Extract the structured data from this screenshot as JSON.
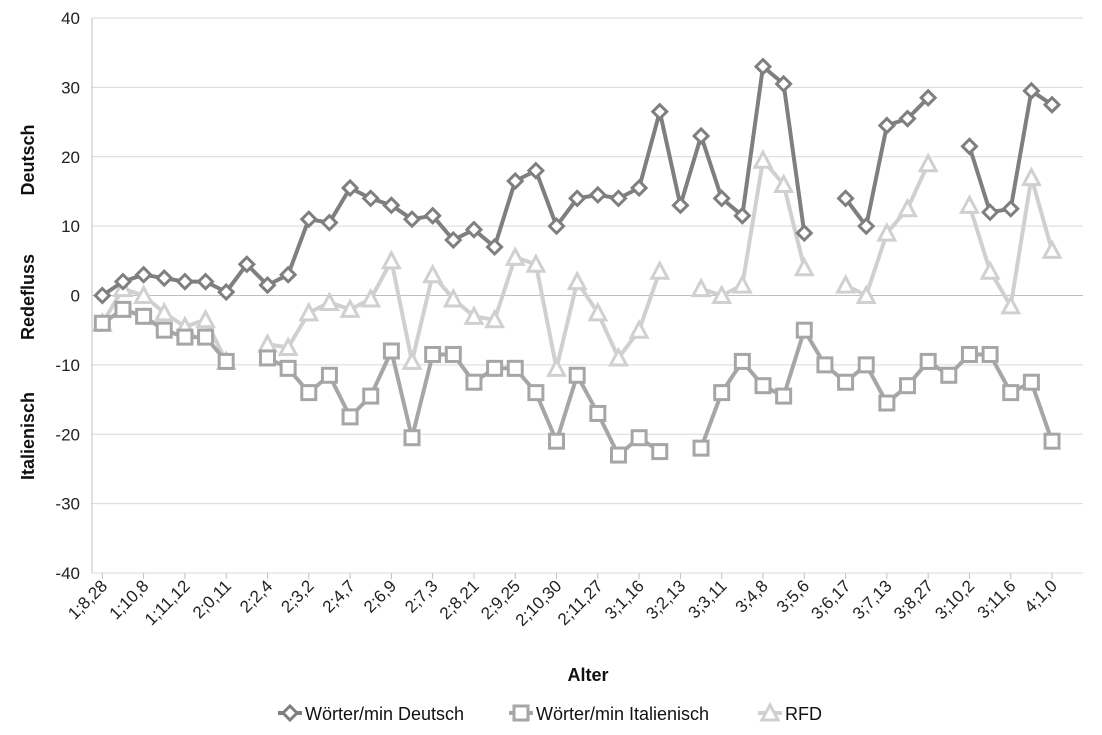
{
  "chart_data": {
    "type": "line",
    "xlabel": "Alter",
    "ylabel_segments": [
      "Deutsch",
      "Redefluss",
      "Italienisch"
    ],
    "ylim": [
      -40,
      40
    ],
    "yticks": [
      -40,
      -30,
      -20,
      -10,
      0,
      10,
      20,
      30,
      40
    ],
    "grid": true,
    "legend_position": "bottom",
    "x_tick_labels": [
      "1;8,28",
      "1;10,8",
      "1;11,12",
      "2;0,11",
      "2;2,4",
      "2;3,2",
      "2;4,7",
      "2;6,9",
      "2;7,3",
      "2;8,21",
      "2;9,25",
      "2;10,30",
      "2;11,27",
      "3;1,16",
      "3;2,13",
      "3;3,11",
      "3;4,8",
      "3;5,6",
      "3;6,17",
      "3;7,13",
      "3;8,27",
      "3;10,2",
      "3;11,6",
      "4;1,0"
    ],
    "x_tick_every": 2,
    "n_points": 48,
    "series": [
      {
        "name": "Wörter/min Deutsch",
        "color": "#7f7f7f",
        "marker": "diamond",
        "values": [
          0,
          2,
          3,
          2.5,
          2,
          2,
          0.5,
          4.5,
          1.5,
          3,
          11,
          10.5,
          15.5,
          14,
          13,
          11,
          11.5,
          8,
          9.5,
          7,
          16.5,
          18,
          10,
          14,
          14.5,
          14,
          15.5,
          26.5,
          13,
          23,
          14,
          11.5,
          33,
          30.5,
          9,
          null,
          14,
          10,
          24.5,
          25.5,
          28.5,
          null,
          21.5,
          12,
          12.5,
          29.5,
          27.5,
          null
        ]
      },
      {
        "name": "Wörter/min Italienisch",
        "color": "#a6a6a6",
        "marker": "square",
        "values": [
          -4,
          -2,
          -3,
          -5,
          -6,
          -6,
          -9.5,
          null,
          -9,
          -10.5,
          -14,
          -11.5,
          -17.5,
          -14.5,
          -8,
          -20.5,
          -8.5,
          -8.5,
          -12.5,
          -10.5,
          -10.5,
          -14,
          -21,
          -11.5,
          -17,
          -23,
          -20.5,
          -22.5,
          null,
          -22,
          -14,
          -9.5,
          -13,
          -14.5,
          -5,
          -10,
          -12.5,
          -10,
          -15.5,
          -13,
          -9.5,
          -11.5,
          -8.5,
          -8.5,
          -14,
          -12.5,
          -21,
          null
        ]
      },
      {
        "name": "RFD",
        "color": "#d0d0d0",
        "marker": "triangle",
        "values": [
          -4,
          1,
          0,
          -2.5,
          -4.5,
          -3.5,
          -9.5,
          null,
          -7,
          -7.5,
          -2.5,
          -1,
          -2,
          -0.5,
          5,
          -9.5,
          3,
          -0.5,
          -3,
          -3.5,
          5.5,
          4.5,
          -10.5,
          2,
          -2.5,
          -9,
          -5,
          3.5,
          null,
          1,
          0,
          1.5,
          19.5,
          16,
          4,
          null,
          1.5,
          0,
          9,
          12.5,
          19,
          null,
          13,
          3.5,
          -1.5,
          17,
          6.5,
          null
        ]
      }
    ]
  }
}
